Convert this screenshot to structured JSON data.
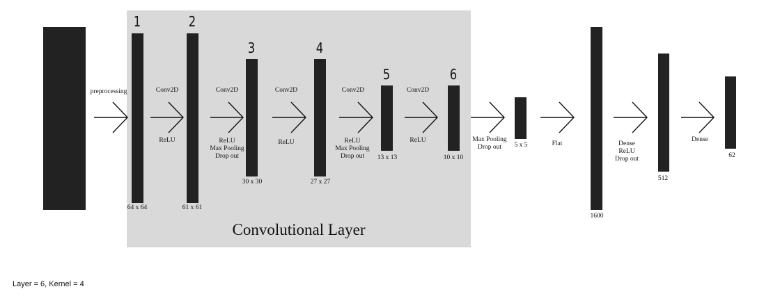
{
  "panel": {
    "title": "Convolutional Layer"
  },
  "layer_numbers": [
    "1",
    "2",
    "3",
    "4",
    "5",
    "6"
  ],
  "stage_labels": {
    "preprocessing": "preprocessing",
    "conv1_top": "Conv2D",
    "conv1_bottom": "ReLU",
    "conv2_top": "Conv2D",
    "conv2_bottom": "ReLU\nMax Pooling\nDrop out",
    "conv3_top": "Conv2D",
    "conv3_bottom": "ReLU",
    "conv4_top": "Conv2D",
    "conv4_bottom": "ReLU\nMax Pooling\nDrop out",
    "conv5_top": "Conv2D",
    "conv5_bottom": "ReLU",
    "pool": "Max Pooling\nDrop out",
    "flat": "Flat",
    "dense1": "Dense\nReLU\nDrop out",
    "dense2": "Dense"
  },
  "sizes": {
    "l1": "64 x 64",
    "l2": "61 x 61",
    "l3": "30 x 30",
    "l4": "27 x 27",
    "l5": "13 x 13",
    "l6": "10 x 10",
    "pooled": "5 x 5",
    "flat": "1600",
    "dense1": "512",
    "dense2": "62"
  },
  "footer": "Layer = 6, Kernel = 4",
  "colors": {
    "bar": "#222222",
    "panel": "#d9d9d9",
    "arrow": "#111111"
  }
}
